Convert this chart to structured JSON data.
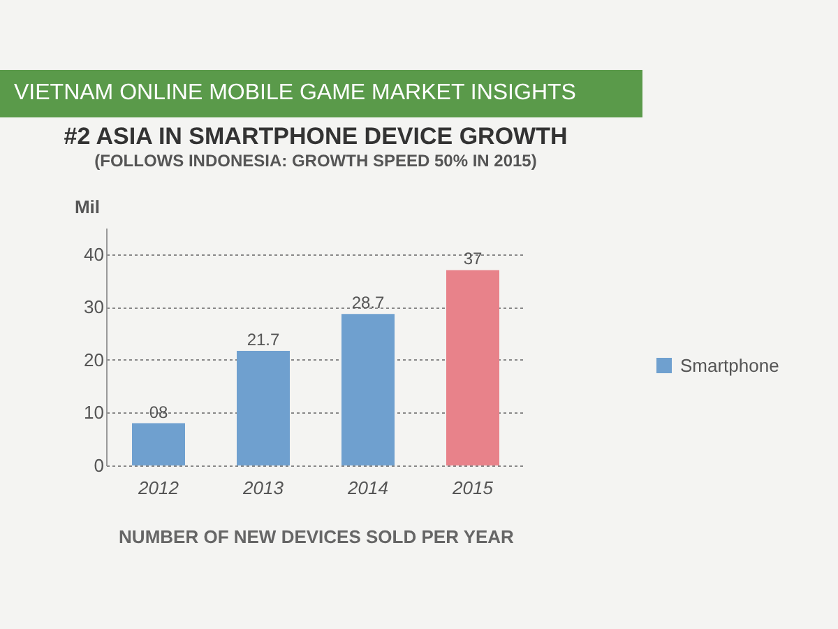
{
  "chart_data": {
    "type": "bar",
    "title": "#2 ASIA IN SMARTPHONE DEVICE GROWTH",
    "subtitle": "(FOLLOWS INDONESIA: GROWTH SPEED 50% IN 2015)",
    "xlabel": "NUMBER OF NEW DEVICES SOLD PER YEAR",
    "ylabel": "Mil",
    "annotations": [
      "VIETNAM ONLINE MOBILE GAME MARKET INSIGHTS"
    ],
    "categories": [
      "2012",
      "2013",
      "2014",
      "2015"
    ],
    "series": [
      {
        "name": "Smartphone",
        "color": "#6fa0cf",
        "colors": [
          "#6fa0cf",
          "#6fa0cf",
          "#6fa0cf",
          "#e8828a"
        ],
        "values": [
          8,
          21.7,
          28.7,
          37
        ],
        "value_labels": [
          "08",
          "21.7",
          "28.7",
          "37"
        ]
      }
    ],
    "ylim": [
      0,
      45
    ],
    "yticks": [
      0,
      10,
      20,
      30,
      40
    ],
    "grid": "y",
    "legend": "right"
  }
}
